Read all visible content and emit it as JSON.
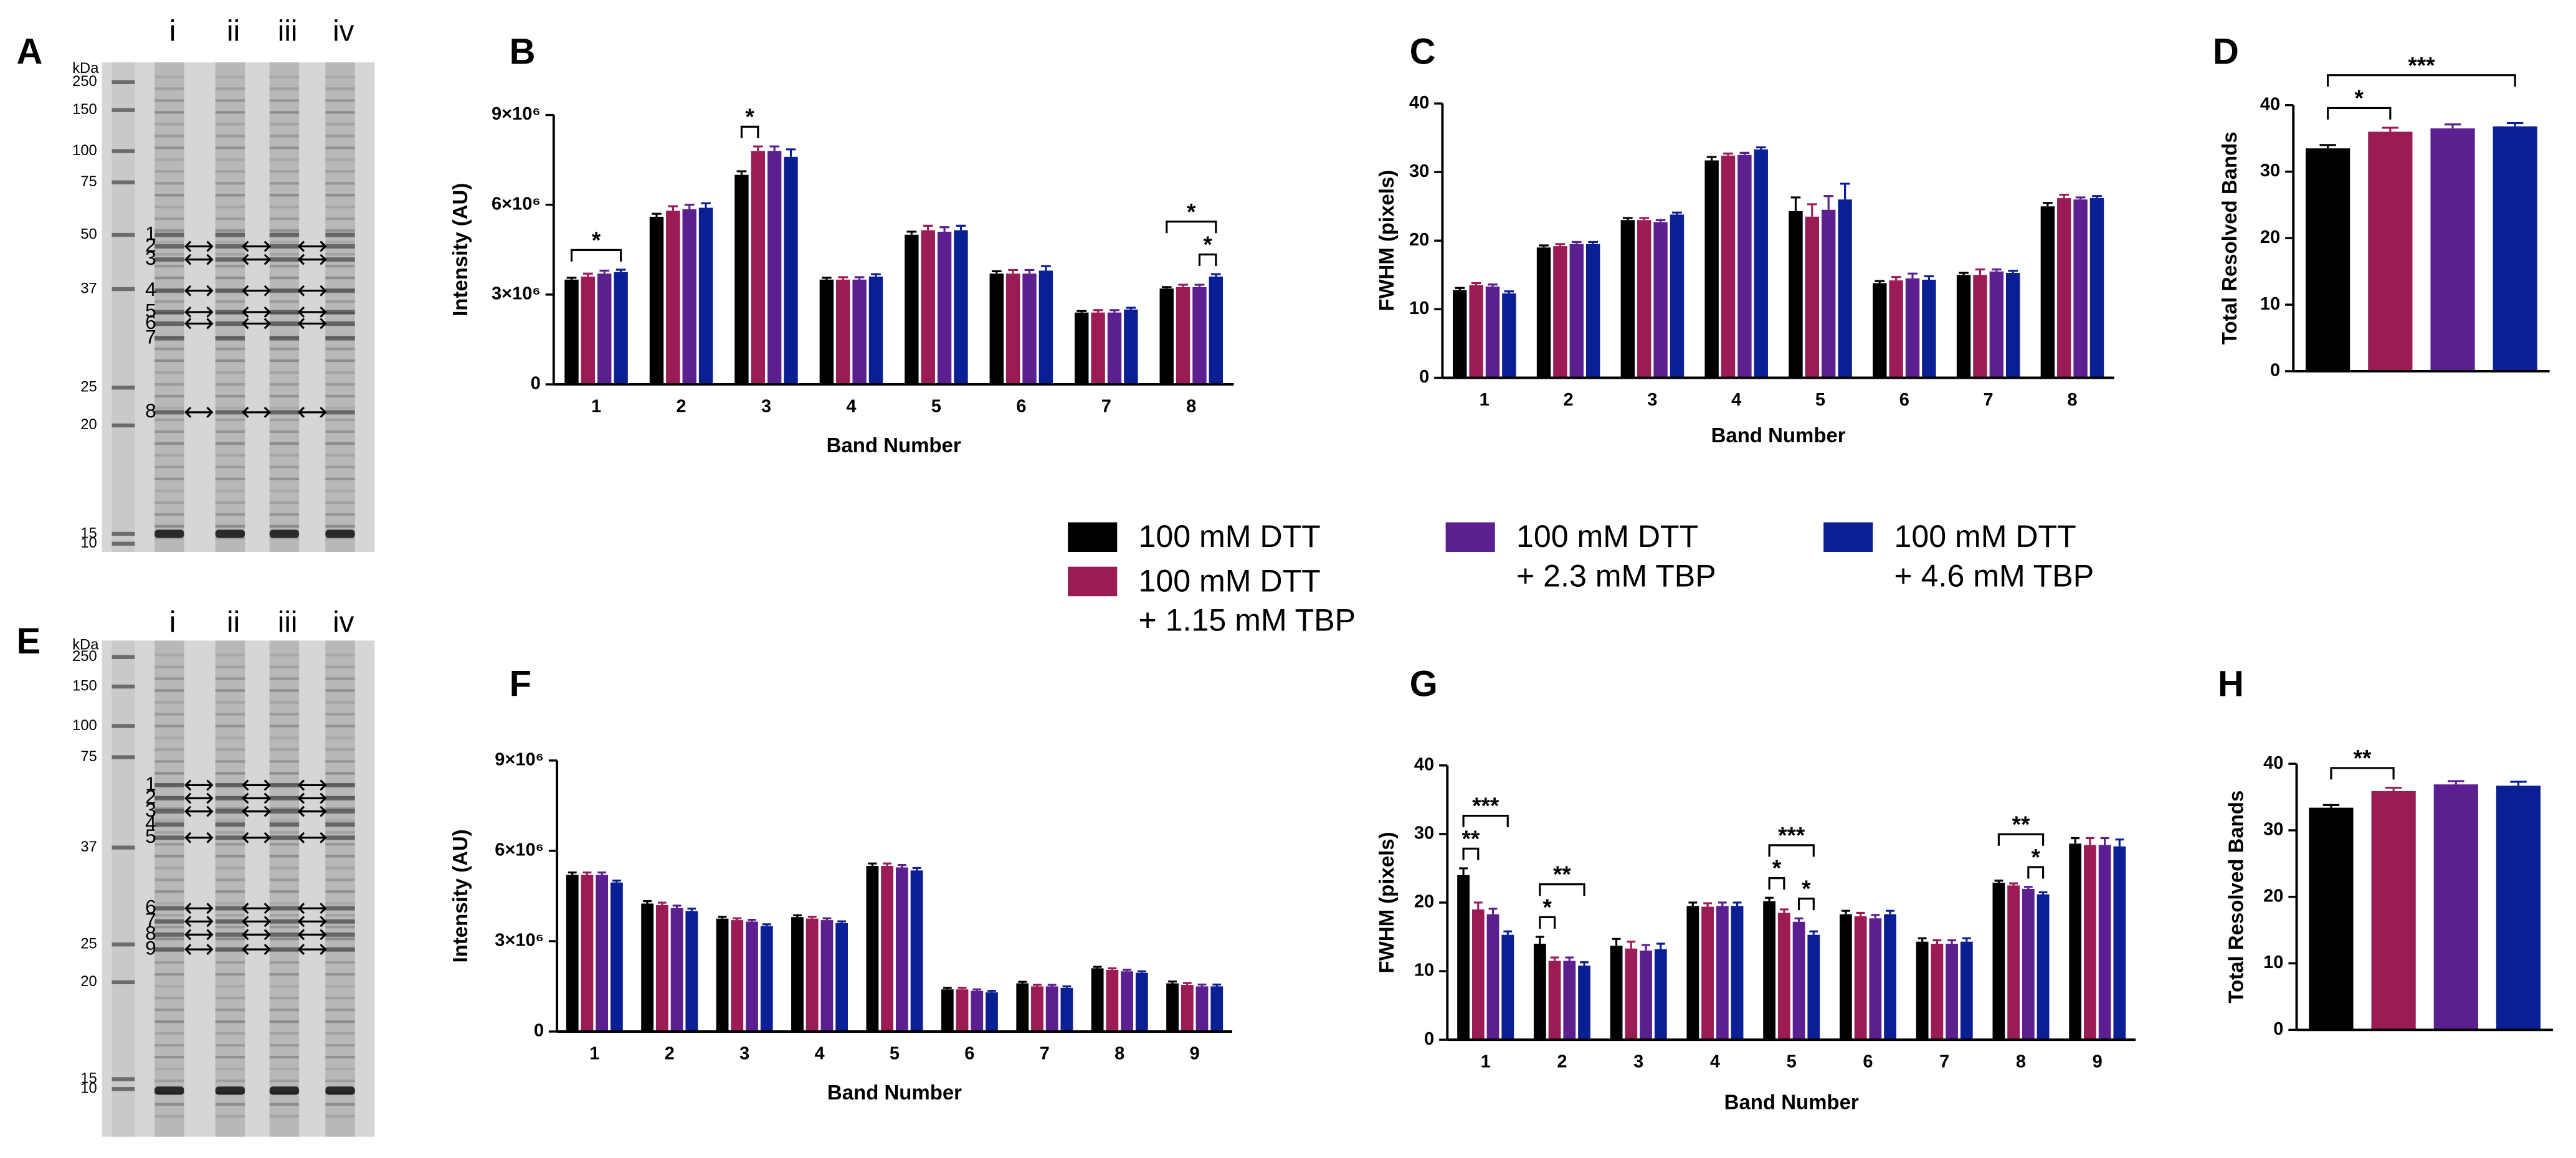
{
  "legend": {
    "entries": [
      {
        "lines": [
          "100 mM DTT"
        ],
        "color": "#000000"
      },
      {
        "lines": [
          "100 mM DTT",
          "+ 1.15 mM TBP"
        ],
        "color": "#9b1b55"
      },
      {
        "lines": [
          "100 mM DTT",
          "+ 2.3 mM TBP"
        ],
        "color": "#5b1f8f"
      },
      {
        "lines": [
          "100 mM DTT",
          "+ 4.6 mM TBP"
        ],
        "color": "#0a1f94"
      }
    ]
  },
  "gels": [
    {
      "panel_label": "A",
      "unit": "kDa",
      "markers": [
        "250",
        "150",
        "100",
        "75",
        "50",
        "37",
        "25",
        "20",
        "15",
        "10"
      ],
      "lanes": [
        "i",
        "ii",
        "iii",
        "iv"
      ],
      "bands": [
        "1",
        "2",
        "3",
        "4",
        "5",
        "6",
        "7",
        "8"
      ]
    },
    {
      "panel_label": "E",
      "unit": "kDa",
      "markers": [
        "250",
        "150",
        "100",
        "75",
        "37",
        "25",
        "20",
        "15",
        "10"
      ],
      "lanes": [
        "i",
        "ii",
        "iii",
        "iv"
      ],
      "bands": [
        "1",
        "2",
        "3",
        "4",
        "5",
        "6",
        "7",
        "8",
        "9"
      ]
    }
  ],
  "chart_data": [
    {
      "type": "bar",
      "panel_label": "B",
      "y_label": "Intensity (AU)",
      "x_label": "Band Number",
      "categories": [
        "1",
        "2",
        "3",
        "4",
        "5",
        "6",
        "7",
        "8"
      ],
      "ylim": [
        0,
        9000000
      ],
      "yticks": [
        0,
        {
          "value": 3000000,
          "label": "3×10⁶"
        },
        {
          "value": 6000000,
          "label": "6×10⁶"
        },
        {
          "value": 9000000,
          "label": "9×10⁶"
        }
      ],
      "series": [
        {
          "values": [
            3500000,
            5600000,
            7000000,
            3500000,
            5000000,
            3700000,
            2400000,
            3200000
          ],
          "errors": [
            60000,
            100000,
            120000,
            60000,
            100000,
            80000,
            50000,
            50000
          ]
        },
        {
          "values": [
            3600000,
            5800000,
            7800000,
            3500000,
            5150000,
            3700000,
            2400000,
            3250000
          ],
          "errors": [
            100000,
            150000,
            150000,
            80000,
            150000,
            120000,
            80000,
            80000
          ]
        },
        {
          "values": [
            3700000,
            5850000,
            7800000,
            3500000,
            5100000,
            3700000,
            2400000,
            3250000
          ],
          "errors": [
            100000,
            150000,
            150000,
            80000,
            150000,
            120000,
            80000,
            80000
          ]
        },
        {
          "values": [
            3750000,
            5900000,
            7600000,
            3600000,
            5150000,
            3800000,
            2500000,
            3600000
          ],
          "errors": [
            80000,
            150000,
            250000,
            80000,
            150000,
            150000,
            60000,
            80000
          ]
        }
      ],
      "significance": [
        {
          "category": 0,
          "from": 0,
          "to": 3,
          "label": "*"
        },
        {
          "category": 2,
          "from": 0,
          "to": 1,
          "label": "*"
        },
        {
          "category": 7,
          "from": 2,
          "to": 3,
          "label": "*"
        },
        {
          "category": 7,
          "from": 0,
          "to": 3,
          "label": "*"
        }
      ]
    },
    {
      "type": "bar",
      "panel_label": "C",
      "y_label": "FWHM (pixels)",
      "x_label": "Band Number",
      "categories": [
        "1",
        "2",
        "3",
        "4",
        "5",
        "6",
        "7",
        "8"
      ],
      "ylim": [
        0,
        40
      ],
      "yticks": [
        0,
        10,
        20,
        30,
        40
      ],
      "series": [
        {
          "values": [
            12.8,
            19,
            23,
            31.7,
            24.3,
            13.8,
            15,
            25
          ],
          "errors": [
            0.3,
            0.3,
            0.3,
            0.5,
            2,
            0.3,
            0.3,
            0.5
          ]
        },
        {
          "values": [
            13.5,
            19.2,
            23,
            32.4,
            23.5,
            14.2,
            15,
            26.2
          ],
          "errors": [
            0.3,
            0.3,
            0.3,
            0.3,
            1.8,
            0.5,
            0.8,
            0.5
          ]
        },
        {
          "values": [
            13.3,
            19.5,
            22.7,
            32.5,
            24.5,
            14.5,
            15.5,
            26
          ],
          "errors": [
            0.3,
            0.3,
            0.3,
            0.3,
            2,
            0.7,
            0.3,
            0.3
          ]
        },
        {
          "values": [
            12.3,
            19.5,
            23.8,
            33.3,
            26,
            14.3,
            15.3,
            26.2
          ],
          "errors": [
            0.3,
            0.3,
            0.3,
            0.3,
            2.3,
            0.5,
            0.3,
            0.3
          ]
        }
      ],
      "significance": []
    },
    {
      "type": "bar",
      "panel_label": "D",
      "y_label": "Total Resolved Bands",
      "ylim": [
        0,
        40
      ],
      "yticks": [
        0,
        10,
        20,
        30,
        40
      ],
      "series": [
        {
          "values": [
            33.5
          ],
          "errors": [
            0.5
          ]
        },
        {
          "values": [
            36
          ],
          "errors": [
            0.6
          ]
        },
        {
          "values": [
            36.5
          ],
          "errors": [
            0.6
          ]
        },
        {
          "values": [
            36.8
          ],
          "errors": [
            0.5
          ]
        }
      ],
      "significance": [
        {
          "category": 0,
          "from": 0,
          "to": 1,
          "label": "*"
        },
        {
          "category": 0,
          "from": 0,
          "to": 3,
          "label": "***"
        }
      ]
    },
    {
      "type": "bar",
      "panel_label": "F",
      "y_label": "Intensity (AU)",
      "x_label": "Band Number",
      "categories": [
        "1",
        "2",
        "3",
        "4",
        "5",
        "6",
        "7",
        "8",
        "9"
      ],
      "ylim": [
        0,
        9000000
      ],
      "yticks": [
        0,
        {
          "value": 3000000,
          "label": "3×10⁶"
        },
        {
          "value": 6000000,
          "label": "6×10⁶"
        },
        {
          "value": 9000000,
          "label": "9×10⁶"
        }
      ],
      "series": [
        {
          "values": [
            5200000,
            4250000,
            3750000,
            3800000,
            5500000,
            1400000,
            1600000,
            2100000,
            1600000
          ],
          "errors": [
            80000,
            80000,
            60000,
            60000,
            80000,
            50000,
            50000,
            50000,
            60000
          ]
        },
        {
          "values": [
            5200000,
            4200000,
            3700000,
            3750000,
            5500000,
            1400000,
            1500000,
            2050000,
            1550000
          ],
          "errors": [
            80000,
            80000,
            60000,
            60000,
            80000,
            50000,
            50000,
            50000,
            60000
          ]
        },
        {
          "values": [
            5200000,
            4100000,
            3650000,
            3700000,
            5450000,
            1350000,
            1500000,
            2000000,
            1500000
          ],
          "errors": [
            80000,
            80000,
            60000,
            60000,
            80000,
            50000,
            50000,
            50000,
            60000
          ]
        },
        {
          "values": [
            4950000,
            4000000,
            3500000,
            3600000,
            5350000,
            1300000,
            1450000,
            1950000,
            1500000
          ],
          "errors": [
            60000,
            80000,
            60000,
            60000,
            80000,
            50000,
            50000,
            50000,
            60000
          ]
        }
      ],
      "significance": []
    },
    {
      "type": "bar",
      "panel_label": "G",
      "y_label": "FWHM (pixels)",
      "x_label": "Band Number",
      "categories": [
        "1",
        "2",
        "3",
        "4",
        "5",
        "6",
        "7",
        "8",
        "9"
      ],
      "ylim": [
        0,
        40
      ],
      "yticks": [
        0,
        10,
        20,
        30,
        40
      ],
      "series": [
        {
          "values": [
            24,
            14,
            13.7,
            19.5,
            20.2,
            18.3,
            14.3,
            22.9,
            28.6
          ],
          "errors": [
            1,
            1,
            1,
            0.5,
            0.5,
            0.5,
            0.5,
            0.3,
            0.8
          ]
        },
        {
          "values": [
            19,
            11.5,
            13.3,
            19.4,
            18.5,
            18,
            14,
            22.5,
            28.4
          ],
          "errors": [
            1,
            0.5,
            1,
            0.5,
            0.5,
            0.5,
            0.5,
            0.3,
            1
          ]
        },
        {
          "values": [
            18.3,
            11.5,
            13,
            19.5,
            17.2,
            17.7,
            14,
            22,
            28.4
          ],
          "errors": [
            0.8,
            0.5,
            0.8,
            0.5,
            0.5,
            0.5,
            0.5,
            0.3,
            1
          ]
        },
        {
          "values": [
            15.3,
            10.8,
            13.2,
            19.5,
            15.3,
            18.3,
            14.3,
            21.2,
            28.2
          ],
          "errors": [
            0.5,
            0.5,
            0.8,
            0.5,
            0.5,
            0.5,
            0.5,
            0.3,
            1
          ]
        }
      ],
      "significance": [
        {
          "category": 0,
          "from": 0,
          "to": 1,
          "label": "**"
        },
        {
          "category": 0,
          "from": 0,
          "to": 3,
          "label": "***"
        },
        {
          "category": 1,
          "from": 0,
          "to": 1,
          "label": "*"
        },
        {
          "category": 1,
          "from": 0,
          "to": 3,
          "label": "**"
        },
        {
          "category": 4,
          "from": 0,
          "to": 1,
          "label": "*"
        },
        {
          "category": 4,
          "from": 2,
          "to": 3,
          "label": "*"
        },
        {
          "category": 4,
          "from": 0,
          "to": 3,
          "label": "***"
        },
        {
          "category": 7,
          "from": 2,
          "to": 3,
          "label": "*"
        },
        {
          "category": 7,
          "from": 0,
          "to": 3,
          "label": "**"
        }
      ]
    },
    {
      "type": "bar",
      "panel_label": "H",
      "y_label": "Total Resolved Bands",
      "ylim": [
        0,
        40
      ],
      "yticks": [
        0,
        10,
        20,
        30,
        40
      ],
      "series": [
        {
          "values": [
            33.4
          ],
          "errors": [
            0.4
          ]
        },
        {
          "values": [
            35.9
          ],
          "errors": [
            0.5
          ]
        },
        {
          "values": [
            36.9
          ],
          "errors": [
            0.5
          ]
        },
        {
          "values": [
            36.7
          ],
          "errors": [
            0.6
          ]
        }
      ],
      "significance": [
        {
          "category": 0,
          "from": 0,
          "to": 1,
          "label": "**"
        }
      ]
    }
  ]
}
